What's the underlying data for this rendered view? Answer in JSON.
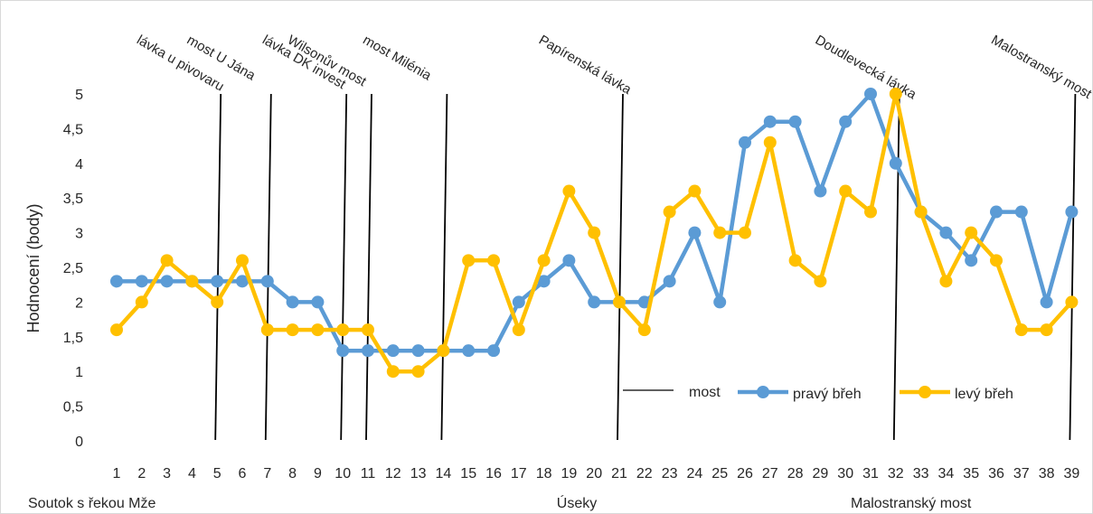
{
  "chart_data": {
    "type": "line",
    "title": "",
    "xlabel": "Úseky",
    "ylabel": "Hodnocení (body)",
    "ylim": [
      0,
      5
    ],
    "y_ticks": [
      "0",
      "0,5",
      "1",
      "1,5",
      "2",
      "2,5",
      "3",
      "3,5",
      "4",
      "4,5",
      "5"
    ],
    "x": [
      "1",
      "2",
      "3",
      "4",
      "5",
      "6",
      "7",
      "8",
      "9",
      "10",
      "11",
      "12",
      "13",
      "14",
      "15",
      "16",
      "17",
      "18",
      "19",
      "20",
      "21",
      "22",
      "23",
      "24",
      "25",
      "26",
      "27",
      "28",
      "29",
      "30",
      "31",
      "32",
      "33",
      "34",
      "35",
      "36",
      "37",
      "38",
      "39"
    ],
    "series": [
      {
        "name": "pravý břeh",
        "color": "#5b9bd5",
        "values": [
          2.3,
          2.3,
          2.3,
          2.3,
          2.3,
          2.3,
          2.3,
          2.0,
          2.0,
          1.3,
          1.3,
          1.3,
          1.3,
          1.3,
          1.3,
          1.3,
          2.0,
          2.3,
          2.6,
          2.0,
          2.0,
          2.0,
          2.3,
          3.0,
          2.0,
          4.3,
          4.6,
          4.6,
          3.6,
          4.6,
          5.0,
          4.0,
          3.3,
          3.0,
          2.6,
          3.3,
          3.3,
          2.0,
          3.3
        ]
      },
      {
        "name": "levý břeh",
        "color": "#ffc000",
        "values": [
          1.6,
          2.0,
          2.6,
          2.3,
          2.0,
          2.6,
          1.6,
          1.6,
          1.6,
          1.6,
          1.6,
          1.0,
          1.0,
          1.3,
          2.6,
          2.6,
          1.6,
          2.6,
          3.6,
          3.0,
          2.0,
          1.6,
          3.3,
          3.6,
          3.0,
          3.0,
          4.3,
          2.6,
          2.3,
          3.6,
          3.3,
          5.0,
          3.3,
          2.3,
          3.0,
          2.6,
          1.6,
          1.6,
          2.0
        ]
      }
    ],
    "bridges": [
      {
        "label": "lávka u pivovaru",
        "x": 5
      },
      {
        "label": "most U Jána",
        "x": 7
      },
      {
        "label": "lávka DK invest",
        "x": 10
      },
      {
        "label": "Wilsonův most",
        "x": 11
      },
      {
        "label": "most Milénia",
        "x": 14
      },
      {
        "label": "Papírenská lávka",
        "x": 21
      },
      {
        "label": "Doudlevecká lávka",
        "x": 32
      },
      {
        "label": "Malostranský most",
        "x": 39
      }
    ],
    "legend": {
      "position": "bottom-right",
      "items": [
        {
          "label": "most",
          "color": "#000000",
          "kind": "line"
        },
        {
          "label": "pravý břeh",
          "color": "#5b9bd5",
          "kind": "marker-line"
        },
        {
          "label": "levý břeh",
          "color": "#ffc000",
          "kind": "marker-line"
        }
      ]
    },
    "footer_left": "Soutok s řekou Mže",
    "footer_right": "Malostranský most"
  }
}
